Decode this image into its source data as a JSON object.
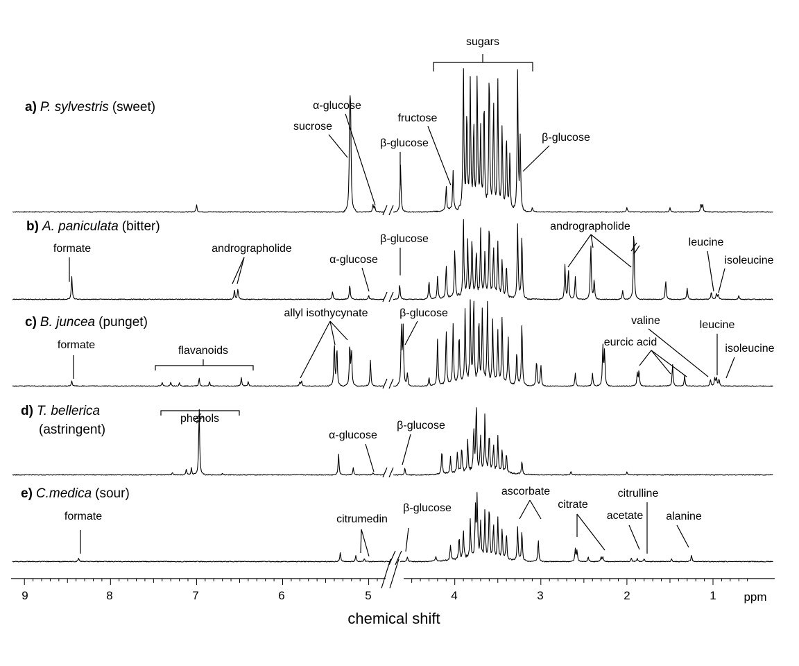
{
  "chart_data": {
    "type": "line",
    "title": "",
    "xlabel": "chemical shift",
    "x_unit": "ppm",
    "x_reversed": true,
    "xlim": [
      9.05,
      0.4
    ],
    "x_ticks": [
      "9",
      "8",
      "7",
      "6",
      "5",
      "4",
      "3",
      "2",
      "1"
    ],
    "axis_break_ppm": 4.7,
    "series": [
      {
        "id": "a",
        "letter": "a)",
        "name": "P. sylvestris",
        "taste": "(sweet)",
        "peaks": [
          {
            "ppm": 7.0,
            "h": 0.05
          },
          {
            "ppm": 5.22,
            "h": 0.72
          },
          {
            "ppm": 5.21,
            "h": 0.55
          },
          {
            "ppm": 4.95,
            "h": 0.05
          },
          {
            "ppm": 4.93,
            "h": 0.04
          },
          {
            "ppm": 4.63,
            "h": 0.33
          },
          {
            "ppm": 4.1,
            "h": 0.18
          },
          {
            "ppm": 4.02,
            "h": 0.28
          },
          {
            "ppm": 3.9,
            "h": 1.0
          },
          {
            "ppm": 3.86,
            "h": 0.7
          },
          {
            "ppm": 3.82,
            "h": 0.9
          },
          {
            "ppm": 3.78,
            "h": 0.6
          },
          {
            "ppm": 3.74,
            "h": 0.95
          },
          {
            "ppm": 3.7,
            "h": 0.55
          },
          {
            "ppm": 3.66,
            "h": 0.8
          },
          {
            "ppm": 3.6,
            "h": 1.0
          },
          {
            "ppm": 3.55,
            "h": 0.75
          },
          {
            "ppm": 3.5,
            "h": 0.9
          },
          {
            "ppm": 3.45,
            "h": 0.6
          },
          {
            "ppm": 3.4,
            "h": 0.55
          },
          {
            "ppm": 3.36,
            "h": 0.4
          },
          {
            "ppm": 3.27,
            "h": 0.97
          },
          {
            "ppm": 3.24,
            "h": 0.5
          },
          {
            "ppm": 3.1,
            "h": 0.03
          },
          {
            "ppm": 2.0,
            "h": 0.03
          },
          {
            "ppm": 1.5,
            "h": 0.03
          },
          {
            "ppm": 1.14,
            "h": 0.06
          },
          {
            "ppm": 1.12,
            "h": 0.05
          }
        ],
        "annotations": [
          {
            "text": "sucrose",
            "ppm": 5.22
          },
          {
            "text": "α-glucose",
            "ppm": 4.95
          },
          {
            "text": "β-glucose",
            "ppm": 4.63
          },
          {
            "text": "fructose",
            "ppm": 4.05
          },
          {
            "text": "β-glucose",
            "ppm": 3.24
          },
          {
            "text": "sugars",
            "ppm": 3.7
          }
        ]
      },
      {
        "id": "b",
        "letter": "b)",
        "name": "A. paniculata",
        "taste": "(bitter)",
        "peaks": [
          {
            "ppm": 8.45,
            "h": 0.3
          },
          {
            "ppm": 6.56,
            "h": 0.12
          },
          {
            "ppm": 6.52,
            "h": 0.14
          },
          {
            "ppm": 5.42,
            "h": 0.1
          },
          {
            "ppm": 5.22,
            "h": 0.2
          },
          {
            "ppm": 5.0,
            "h": 0.05
          },
          {
            "ppm": 4.64,
            "h": 0.2
          },
          {
            "ppm": 4.3,
            "h": 0.25
          },
          {
            "ppm": 4.2,
            "h": 0.3
          },
          {
            "ppm": 4.1,
            "h": 0.45
          },
          {
            "ppm": 4.0,
            "h": 0.65
          },
          {
            "ppm": 3.9,
            "h": 1.0
          },
          {
            "ppm": 3.85,
            "h": 0.7
          },
          {
            "ppm": 3.8,
            "h": 0.75
          },
          {
            "ppm": 3.75,
            "h": 0.6
          },
          {
            "ppm": 3.7,
            "h": 0.85
          },
          {
            "ppm": 3.65,
            "h": 0.55
          },
          {
            "ppm": 3.6,
            "h": 0.95
          },
          {
            "ppm": 3.55,
            "h": 0.65
          },
          {
            "ppm": 3.5,
            "h": 0.7
          },
          {
            "ppm": 3.45,
            "h": 0.5
          },
          {
            "ppm": 3.4,
            "h": 0.45
          },
          {
            "ppm": 3.27,
            "h": 0.97
          },
          {
            "ppm": 3.22,
            "h": 0.85
          },
          {
            "ppm": 2.72,
            "h": 0.45
          },
          {
            "ppm": 2.68,
            "h": 0.4
          },
          {
            "ppm": 2.6,
            "h": 0.3
          },
          {
            "ppm": 2.42,
            "h": 0.75
          },
          {
            "ppm": 2.38,
            "h": 0.25
          },
          {
            "ppm": 2.05,
            "h": 0.12
          },
          {
            "ppm": 1.92,
            "h": 0.97
          },
          {
            "ppm": 1.55,
            "h": 0.25
          },
          {
            "ppm": 1.3,
            "h": 0.15
          },
          {
            "ppm": 1.02,
            "h": 0.1
          },
          {
            "ppm": 0.96,
            "h": 0.08
          },
          {
            "ppm": 0.94,
            "h": 0.07
          },
          {
            "ppm": 0.7,
            "h": 0.05
          }
        ],
        "annotations": [
          {
            "text": "formate",
            "ppm": 8.45
          },
          {
            "text": "andrographolide",
            "ppm": 6.54
          },
          {
            "text": "α-glucose",
            "ppm": 5.0
          },
          {
            "text": "β-glucose",
            "ppm": 4.64
          },
          {
            "text": "andrographolide",
            "ppm": 2.4
          },
          {
            "text": "leucine",
            "ppm": 0.97
          },
          {
            "text": "isoleucine",
            "ppm": 0.94
          }
        ]
      },
      {
        "id": "c",
        "letter": "c)",
        "name": "B. juncea",
        "taste": "(punget)",
        "peaks": [
          {
            "ppm": 8.45,
            "h": 0.06
          },
          {
            "ppm": 7.4,
            "h": 0.04
          },
          {
            "ppm": 7.3,
            "h": 0.05
          },
          {
            "ppm": 7.2,
            "h": 0.04
          },
          {
            "ppm": 6.97,
            "h": 0.09
          },
          {
            "ppm": 6.85,
            "h": 0.05
          },
          {
            "ppm": 6.48,
            "h": 0.1
          },
          {
            "ppm": 6.4,
            "h": 0.05
          },
          {
            "ppm": 5.8,
            "h": 0.05
          },
          {
            "ppm": 5.78,
            "h": 0.06
          },
          {
            "ppm": 5.4,
            "h": 0.5
          },
          {
            "ppm": 5.37,
            "h": 0.45
          },
          {
            "ppm": 5.22,
            "h": 0.48
          },
          {
            "ppm": 5.2,
            "h": 0.4
          },
          {
            "ppm": 4.98,
            "h": 0.3
          },
          {
            "ppm": 4.62,
            "h": 0.7
          },
          {
            "ppm": 4.6,
            "h": 0.65
          },
          {
            "ppm": 4.55,
            "h": 0.15
          },
          {
            "ppm": 4.3,
            "h": 0.1
          },
          {
            "ppm": 4.2,
            "h": 0.55
          },
          {
            "ppm": 4.1,
            "h": 0.65
          },
          {
            "ppm": 4.02,
            "h": 0.7
          },
          {
            "ppm": 3.95,
            "h": 0.6
          },
          {
            "ppm": 3.88,
            "h": 0.85
          },
          {
            "ppm": 3.82,
            "h": 0.9
          },
          {
            "ppm": 3.78,
            "h": 1.0
          },
          {
            "ppm": 3.72,
            "h": 0.75
          },
          {
            "ppm": 3.68,
            "h": 0.85
          },
          {
            "ppm": 3.62,
            "h": 0.95
          },
          {
            "ppm": 3.56,
            "h": 0.7
          },
          {
            "ppm": 3.5,
            "h": 0.6
          },
          {
            "ppm": 3.45,
            "h": 0.8
          },
          {
            "ppm": 3.38,
            "h": 0.55
          },
          {
            "ppm": 3.28,
            "h": 0.4
          },
          {
            "ppm": 3.22,
            "h": 0.75
          },
          {
            "ppm": 3.05,
            "h": 0.3
          },
          {
            "ppm": 3.0,
            "h": 0.25
          },
          {
            "ppm": 2.6,
            "h": 0.15
          },
          {
            "ppm": 2.4,
            "h": 0.15
          },
          {
            "ppm": 2.28,
            "h": 0.45
          },
          {
            "ppm": 2.26,
            "h": 0.4
          },
          {
            "ppm": 1.88,
            "h": 0.15
          },
          {
            "ppm": 1.86,
            "h": 0.18
          },
          {
            "ppm": 1.47,
            "h": 0.25
          },
          {
            "ppm": 1.33,
            "h": 0.12
          },
          {
            "ppm": 1.03,
            "h": 0.08
          },
          {
            "ppm": 0.98,
            "h": 0.09
          },
          {
            "ppm": 0.96,
            "h": 0.1
          },
          {
            "ppm": 0.93,
            "h": 0.08
          }
        ],
        "annotations": [
          {
            "text": "formate",
            "ppm": 8.45
          },
          {
            "text": "flavanoids",
            "ppm": 6.9
          },
          {
            "text": "allyl isothycynate",
            "ppm": 5.4
          },
          {
            "text": "β-glucose",
            "ppm": 4.6
          },
          {
            "text": "eurcic acid",
            "ppm": 1.6
          },
          {
            "text": "valine",
            "ppm": 1.03
          },
          {
            "text": "leucine",
            "ppm": 0.96
          },
          {
            "text": "isoleucine",
            "ppm": 0.9
          }
        ]
      },
      {
        "id": "d",
        "letter": "d)",
        "name": "T. bellerica",
        "taste": "(astringent)",
        "peaks": [
          {
            "ppm": 7.28,
            "h": 0.04
          },
          {
            "ppm": 7.12,
            "h": 0.08
          },
          {
            "ppm": 7.06,
            "h": 0.1
          },
          {
            "ppm": 6.97,
            "h": 0.97
          },
          {
            "ppm": 6.7,
            "h": 0.02
          },
          {
            "ppm": 5.35,
            "h": 0.3
          },
          {
            "ppm": 5.18,
            "h": 0.1
          },
          {
            "ppm": 4.95,
            "h": 0.03
          },
          {
            "ppm": 4.58,
            "h": 0.1
          },
          {
            "ppm": 4.15,
            "h": 0.35
          },
          {
            "ppm": 4.05,
            "h": 0.25
          },
          {
            "ppm": 3.97,
            "h": 0.3
          },
          {
            "ppm": 3.92,
            "h": 0.35
          },
          {
            "ppm": 3.85,
            "h": 0.45
          },
          {
            "ppm": 3.78,
            "h": 0.6
          },
          {
            "ppm": 3.75,
            "h": 1.0
          },
          {
            "ppm": 3.7,
            "h": 0.5
          },
          {
            "ppm": 3.65,
            "h": 0.8
          },
          {
            "ppm": 3.6,
            "h": 0.55
          },
          {
            "ppm": 3.55,
            "h": 0.4
          },
          {
            "ppm": 3.5,
            "h": 0.5
          },
          {
            "ppm": 3.45,
            "h": 0.35
          },
          {
            "ppm": 3.4,
            "h": 0.3
          },
          {
            "ppm": 3.22,
            "h": 0.2
          },
          {
            "ppm": 2.65,
            "h": 0.05
          },
          {
            "ppm": 2.0,
            "h": 0.04
          }
        ],
        "annotations": [
          {
            "text": "phenols",
            "ppm": 6.9
          },
          {
            "text": "α-glucose",
            "ppm": 4.95
          },
          {
            "text": "β-glucose",
            "ppm": 4.58
          }
        ]
      },
      {
        "id": "e",
        "letter": "e)",
        "name": "C.medica",
        "taste": "(sour)",
        "peaks": [
          {
            "ppm": 8.37,
            "h": 0.06
          },
          {
            "ppm": 5.33,
            "h": 0.15
          },
          {
            "ppm": 5.15,
            "h": 0.1
          },
          {
            "ppm": 5.05,
            "h": 0.05
          },
          {
            "ppm": 4.55,
            "h": 0.08
          },
          {
            "ppm": 4.22,
            "h": 0.08
          },
          {
            "ppm": 4.05,
            "h": 0.25
          },
          {
            "ppm": 3.95,
            "h": 0.35
          },
          {
            "ppm": 3.9,
            "h": 0.45
          },
          {
            "ppm": 3.82,
            "h": 0.6
          },
          {
            "ppm": 3.76,
            "h": 0.8
          },
          {
            "ppm": 3.74,
            "h": 1.0
          },
          {
            "ppm": 3.7,
            "h": 0.6
          },
          {
            "ppm": 3.65,
            "h": 0.75
          },
          {
            "ppm": 3.6,
            "h": 0.85
          },
          {
            "ppm": 3.55,
            "h": 0.55
          },
          {
            "ppm": 3.5,
            "h": 0.65
          },
          {
            "ppm": 3.45,
            "h": 0.5
          },
          {
            "ppm": 3.4,
            "h": 0.45
          },
          {
            "ppm": 3.27,
            "h": 0.55
          },
          {
            "ppm": 3.22,
            "h": 0.5
          },
          {
            "ppm": 3.03,
            "h": 0.35
          },
          {
            "ppm": 2.6,
            "h": 0.2
          },
          {
            "ppm": 2.58,
            "h": 0.18
          },
          {
            "ppm": 2.45,
            "h": 0.08
          },
          {
            "ppm": 2.3,
            "h": 0.08
          },
          {
            "ppm": 2.28,
            "h": 0.07
          },
          {
            "ppm": 1.95,
            "h": 0.06
          },
          {
            "ppm": 1.88,
            "h": 0.05
          },
          {
            "ppm": 1.8,
            "h": 0.05
          },
          {
            "ppm": 1.48,
            "h": 0.04
          },
          {
            "ppm": 1.25,
            "h": 0.11
          }
        ],
        "annotations": [
          {
            "text": "formate",
            "ppm": 8.37
          },
          {
            "text": "citrumedin",
            "ppm": 5.05
          },
          {
            "text": "β-glucose",
            "ppm": 4.55
          },
          {
            "text": "ascorbate",
            "ppm": 3.15
          },
          {
            "text": "citrate",
            "ppm": 2.45
          },
          {
            "text": "acetate",
            "ppm": 1.92
          },
          {
            "text": "citrulline",
            "ppm": 1.78
          },
          {
            "text": "alanine",
            "ppm": 1.3
          }
        ]
      }
    ]
  }
}
